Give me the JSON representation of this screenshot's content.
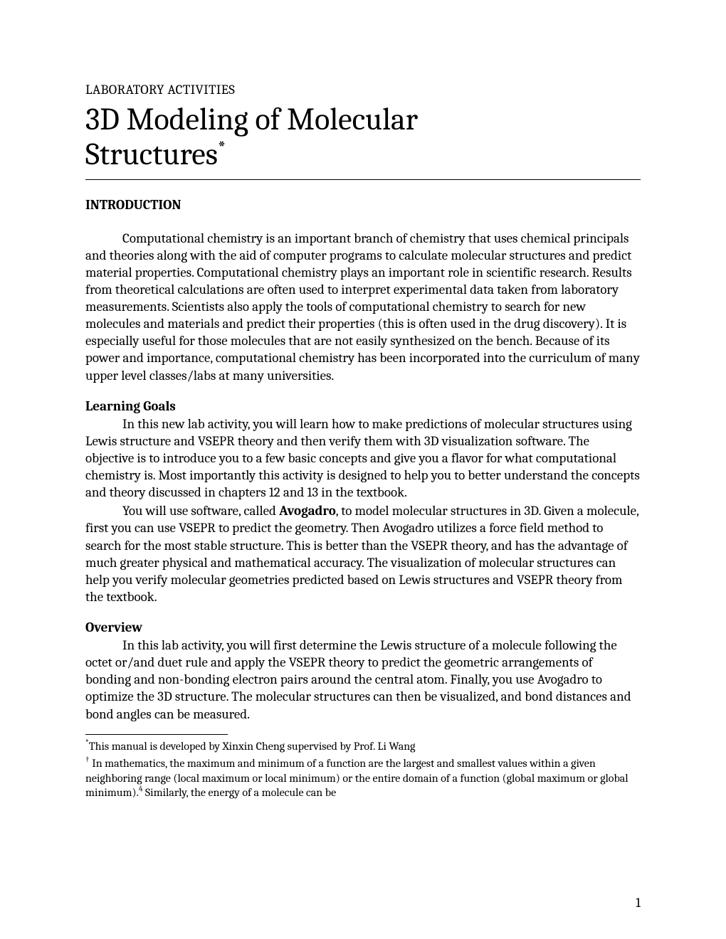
{
  "pretitle": "LABORATORY ACTIVITIES",
  "title_line1": "3D Modeling of Molecular",
  "title_line2": "Structures",
  "title_symbol": "*",
  "section_intro": "INTRODUCTION",
  "intro_p1": "Computational chemistry is an important branch of chemistry that uses chemical principals and theories along with the aid of computer programs to calculate molecular structures and predict material properties.  Computational chemistry plays an important role in scientific research.  Results from theoretical calculations are often used to interpret experimental data taken from laboratory measurements.  Scientists also apply the tools of computational chemistry to search for new molecules and materials and predict their properties (this is often used in the drug discovery).  It is especially useful for those molecules that are not easily synthesized on the bench. Because of its power and importance, computational chemistry has been incorporated into the curriculum of many upper level classes/labs at many universities.",
  "subhead_goals": "Learning Goals",
  "goals_p1": "In this new lab activity, you will learn how to make predictions of molecular structures using Lewis structure and VSEPR theory and then verify them with 3D visualization software.   The objective is to introduce you to a few basic concepts and give you a flavor for what computational chemistry is. Most importantly this activity is designed to help you to better understand the concepts and theory discussed in chapters 12 and 13 in the textbook.",
  "goals_p2_a": "You will use software, called ",
  "goals_p2_bold": "Avogadro",
  "goals_p2_b": ", to model molecular structures in 3D. Given a molecule, first you can use VSEPR to predict the geometry. Then Avogadro utilizes a force field method to search for the most stable structure. This is better than the VSEPR theory, and has the advantage of much greater physical and mathematical accuracy. The visualization of molecular structures can help you verify molecular geometries predicted based on Lewis structures and VSEPR theory from the textbook.",
  "subhead_overview": "Overview",
  "overview_p1": "In this lab activity, you will first determine the Lewis structure of a molecule following the octet or/and duet rule and apply the VSEPR theory to predict the geometric arrangements of bonding and non-bonding electron pairs around the central atom.  Finally, you use Avogadro to optimize the 3D structure. The molecular structures can then be visualized, and bond distances and bond angles can be measured.",
  "fn1_mark": "*",
  "fn1_text": "This manual is developed by Xinxin Cheng supervised by Prof. Li Wang",
  "fn2_mark": "†",
  "fn2_text_a": "  In mathematics, the maximum and minimum of a function are the largest and smallest values within a given neighboring range (local maximum or local minimum) or the entire domain of a function (global maximum or global minimum).",
  "fn2_sup": "4",
  "fn2_text_b": " Similarly, the energy of a molecule can be",
  "page_number": "1"
}
